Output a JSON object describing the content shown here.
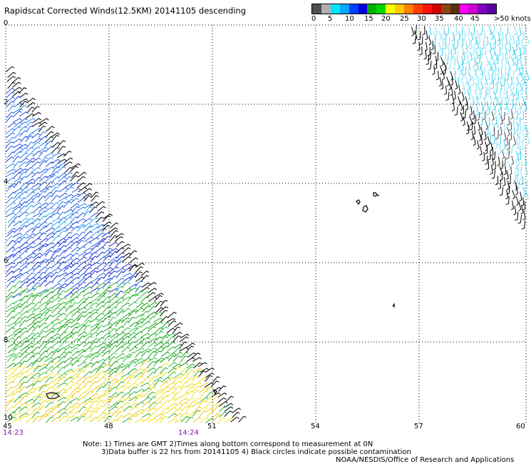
{
  "title": "Rapidscat Corrected Winds(12.5KM) 20141105 descending",
  "legend": {
    "labels": [
      "0",
      "5",
      "10",
      "15",
      "20",
      "25",
      "30",
      "35",
      "40",
      "45",
      ">50 knots"
    ],
    "colors": [
      "#4f4f4f",
      "#b0b0b0",
      "#00e5ff",
      "#00a8ff",
      "#0040ff",
      "#0000d8",
      "#00b000",
      "#00d800",
      "#ffff00",
      "#ffc800",
      "#ff7f00",
      "#ff4000",
      "#ff1010",
      "#d00000",
      "#8b4513",
      "#5a3010",
      "#ff00ff",
      "#d000d0",
      "#8000c0",
      "#5a00a0"
    ]
  },
  "axes": {
    "lat_labels": [
      "0",
      "2",
      "4",
      "6",
      "8",
      "10"
    ],
    "lon_labels": [
      "45",
      "48",
      "51",
      "54",
      "57",
      "60"
    ]
  },
  "times": [
    "14:23",
    "14:24"
  ],
  "notes": {
    "line1": "Note: 1) Times are GMT 2)Times along bottom correspond to measurement at 0N",
    "line2": "3)Data buffer is 22 hrs from 20141105 4) Black circles indicate possible contamination",
    "line3": "NOAA/NESDIS/Office of Research and Applications"
  }
}
